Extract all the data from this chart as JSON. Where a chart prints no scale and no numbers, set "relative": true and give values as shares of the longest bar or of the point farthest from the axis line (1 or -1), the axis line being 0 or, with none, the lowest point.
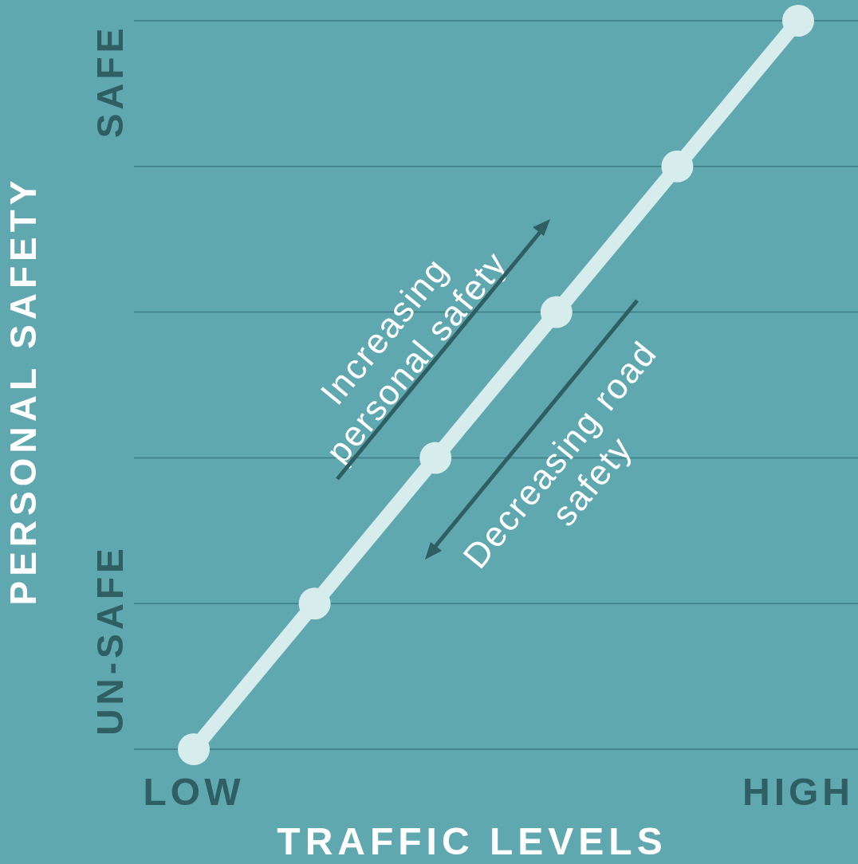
{
  "chart_data": {
    "type": "line",
    "xlabel": "TRAFFIC LEVELS",
    "ylabel": "PERSONAL SAFETY",
    "categories": [
      "LOW",
      null,
      null,
      null,
      null,
      "HIGH"
    ],
    "series": [
      {
        "color": "#d6eced",
        "values": [
          0,
          0.2,
          0.4,
          0.6,
          0.8,
          1
        ]
      }
    ],
    "relative": true,
    "ref_lines": [
      {
        "axis": "y",
        "value": 0,
        "color": "#3c7c83"
      },
      {
        "axis": "y",
        "value": 0.2,
        "color": "#3c7c83"
      },
      {
        "axis": "y",
        "value": 0.4,
        "color": "#3c7c83"
      },
      {
        "axis": "y",
        "value": 0.6,
        "color": "#3c7c83"
      },
      {
        "axis": "y",
        "value": 0.8,
        "color": "#3c7c83"
      },
      {
        "axis": "y",
        "value": 1,
        "color": "#3c7c83"
      }
    ],
    "marker": "circle",
    "line_style": "solid",
    "annotations": [
      "UN-SAFE",
      "SAFE",
      "Increasing personal safety",
      "Decreasing road safety"
    ]
  }
}
